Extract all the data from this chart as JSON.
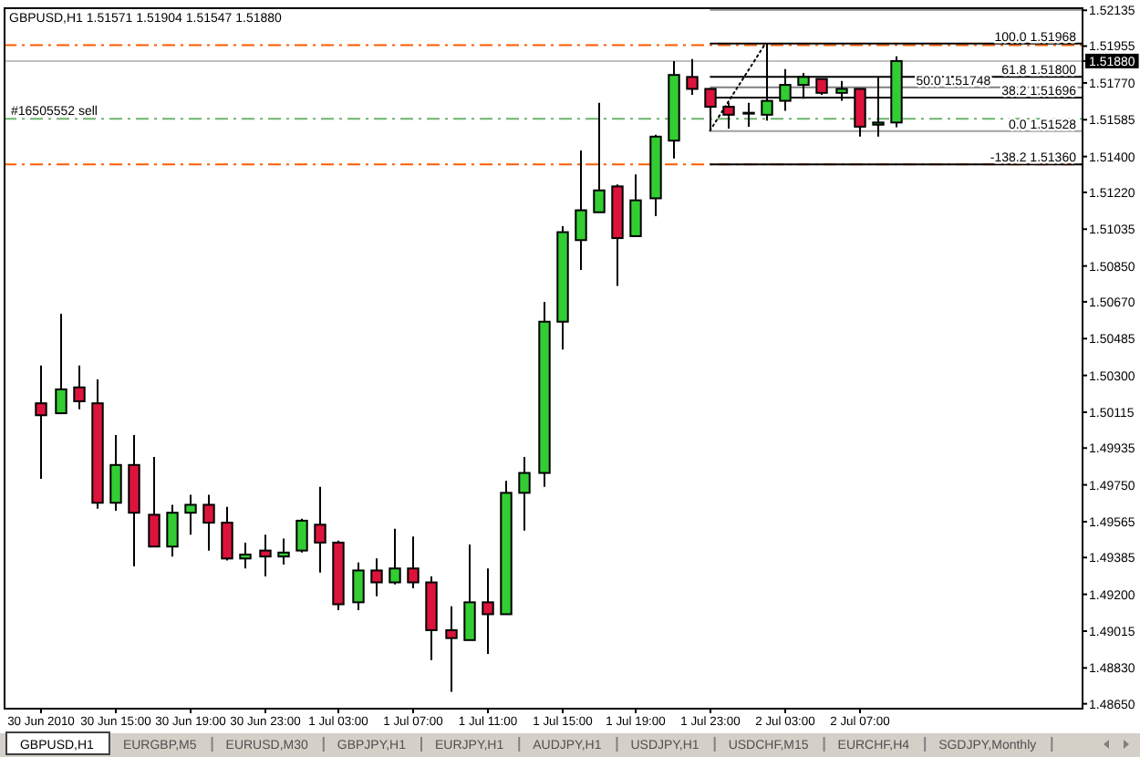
{
  "chart_data": {
    "type": "candlestick",
    "title": "GBPUSD,H1 1.51571 1.51904 1.51547 1.51880",
    "x": [
      "2010-06-30T11:00",
      "2010-06-30T12:00",
      "2010-06-30T13:00",
      "2010-06-30T14:00",
      "2010-06-30T15:00",
      "2010-06-30T16:00",
      "2010-06-30T17:00",
      "2010-06-30T18:00",
      "2010-06-30T19:00",
      "2010-06-30T20:00",
      "2010-06-30T21:00",
      "2010-06-30T22:00",
      "2010-06-30T23:00",
      "2010-07-01T00:00",
      "2010-07-01T01:00",
      "2010-07-01T02:00",
      "2010-07-01T03:00",
      "2010-07-01T04:00",
      "2010-07-01T05:00",
      "2010-07-01T06:00",
      "2010-07-01T07:00",
      "2010-07-01T08:00",
      "2010-07-01T09:00",
      "2010-07-01T10:00",
      "2010-07-01T11:00",
      "2010-07-01T12:00",
      "2010-07-01T13:00",
      "2010-07-01T14:00",
      "2010-07-01T15:00",
      "2010-07-01T16:00",
      "2010-07-01T17:00",
      "2010-07-01T18:00",
      "2010-07-01T19:00",
      "2010-07-01T20:00",
      "2010-07-01T21:00",
      "2010-07-01T22:00",
      "2010-07-01T23:00",
      "2010-07-02T00:00",
      "2010-07-02T01:00",
      "2010-07-02T02:00",
      "2010-07-02T03:00",
      "2010-07-02T04:00",
      "2010-07-02T05:00",
      "2010-07-02T06:00",
      "2010-07-02T07:00",
      "2010-07-02T08:00",
      "2010-07-02T09:00"
    ],
    "ohlc": [
      [
        1.5016,
        1.5035,
        1.4978,
        1.501
      ],
      [
        1.5011,
        1.5061,
        1.5011,
        1.5023
      ],
      [
        1.5024,
        1.5035,
        1.5013,
        1.5017
      ],
      [
        1.5016,
        1.5028,
        1.4963,
        1.4966
      ],
      [
        1.4966,
        1.5,
        1.4962,
        1.4985
      ],
      [
        1.4985,
        1.5,
        1.4934,
        1.4961
      ],
      [
        1.496,
        1.4989,
        1.4944,
        1.4944
      ],
      [
        1.4944,
        1.4965,
        1.4939,
        1.4961
      ],
      [
        1.4961,
        1.497,
        1.495,
        1.4965
      ],
      [
        1.4965,
        1.497,
        1.4942,
        1.4956
      ],
      [
        1.4956,
        1.4964,
        1.4937,
        1.4938
      ],
      [
        1.4938,
        1.4946,
        1.4933,
        1.494
      ],
      [
        1.4942,
        1.495,
        1.4929,
        1.4939
      ],
      [
        1.4939,
        1.4948,
        1.4935,
        1.4941
      ],
      [
        1.4942,
        1.4958,
        1.4941,
        1.4957
      ],
      [
        1.4955,
        1.4974,
        1.4931,
        1.4946
      ],
      [
        1.4946,
        1.4947,
        1.4912,
        1.4915
      ],
      [
        1.4916,
        1.4936,
        1.4912,
        1.4932
      ],
      [
        1.4932,
        1.4938,
        1.4919,
        1.4926
      ],
      [
        1.4926,
        1.4953,
        1.4925,
        1.4933
      ],
      [
        1.4933,
        1.4949,
        1.4923,
        1.4926
      ],
      [
        1.4926,
        1.4929,
        1.4887,
        1.4902
      ],
      [
        1.4902,
        1.4914,
        1.4871,
        1.4898
      ],
      [
        1.4897,
        1.4945,
        1.4897,
        1.4916
      ],
      [
        1.4916,
        1.4933,
        1.489,
        1.491
      ],
      [
        1.491,
        1.4977,
        1.491,
        1.4971
      ],
      [
        1.4971,
        1.4989,
        1.4952,
        1.4981
      ],
      [
        1.4981,
        1.5067,
        1.4974,
        1.5057
      ],
      [
        1.5057,
        1.5105,
        1.5043,
        1.5102
      ],
      [
        1.5098,
        1.5143,
        1.5083,
        1.5113
      ],
      [
        1.5112,
        1.5167,
        1.5112,
        1.5123
      ],
      [
        1.5125,
        1.5126,
        1.5075,
        1.5099
      ],
      [
        1.51,
        1.5131,
        1.51,
        1.5118
      ],
      [
        1.5119,
        1.5151,
        1.511,
        1.515
      ],
      [
        1.5148,
        1.5188,
        1.5139,
        1.5181
      ],
      [
        1.518,
        1.5189,
        1.5171,
        1.5174
      ],
      [
        1.5174,
        1.5174,
        1.51528,
        1.5165
      ],
      [
        1.5165,
        1.5167,
        1.5154,
        1.5161
      ],
      [
        1.5162,
        1.5167,
        1.5155,
        1.5162
      ],
      [
        1.5161,
        1.51968,
        1.5158,
        1.5168
      ],
      [
        1.5168,
        1.5184,
        1.5163,
        1.5176
      ],
      [
        1.5176,
        1.5182,
        1.5169,
        1.518
      ],
      [
        1.5179,
        1.5179,
        1.5171,
        1.5172
      ],
      [
        1.5172,
        1.5178,
        1.5168,
        1.5174
      ],
      [
        1.5174,
        1.5174,
        1.515,
        1.5155
      ],
      [
        1.5156,
        1.518,
        1.515,
        1.51571
      ],
      [
        1.51571,
        1.51904,
        1.51547,
        1.5188
      ]
    ],
    "colors": [
      "#dc143c",
      "#32cd32",
      "#dc143c",
      "#dc143c",
      "#32cd32",
      "#dc143c",
      "#dc143c",
      "#32cd32",
      "#32cd32",
      "#dc143c",
      "#dc143c",
      "#32cd32",
      "#dc143c",
      "#32cd32",
      "#32cd32",
      "#dc143c",
      "#dc143c",
      "#32cd32",
      "#dc143c",
      "#32cd32",
      "#dc143c",
      "#dc143c",
      "#dc143c",
      "#32cd32",
      "#dc143c",
      "#32cd32",
      "#32cd32",
      "#32cd32",
      "#32cd32",
      "#32cd32",
      "#32cd32",
      "#dc143c",
      "#32cd32",
      "#32cd32",
      "#32cd32",
      "#dc143c",
      "#dc143c",
      "#dc143c",
      "#32cd32",
      "#32cd32",
      "#32cd32",
      "#32cd32",
      "#dc143c",
      "#32cd32",
      "#dc143c",
      "#32cd32",
      "#32cd32"
    ],
    "series": [
      {
        "type": "line",
        "x": [
          "2010-07-01T23:00",
          "2010-07-02T02:00"
        ],
        "values": [
          1.5153,
          1.5197
        ],
        "color": "#000000",
        "line_style": "dotted"
      }
    ],
    "xlim": [
      "2010-06-30T09:00",
      "2010-07-02T19:00"
    ],
    "xticks": [
      {
        "value": "2010-06-30T11:00",
        "label": "30 Jun 2010"
      },
      {
        "value": "2010-06-30T15:00",
        "label": "30 Jun 15:00"
      },
      {
        "value": "2010-06-30T19:00",
        "label": "30 Jun 19:00"
      },
      {
        "value": "2010-06-30T23:00",
        "label": "30 Jun 23:00"
      },
      {
        "value": "2010-07-01T03:00",
        "label": "1 Jul 03:00"
      },
      {
        "value": "2010-07-01T07:00",
        "label": "1 Jul 07:00"
      },
      {
        "value": "2010-07-01T11:00",
        "label": "1 Jul 11:00"
      },
      {
        "value": "2010-07-01T15:00",
        "label": "1 Jul 15:00"
      },
      {
        "value": "2010-07-01T19:00",
        "label": "1 Jul 19:00"
      },
      {
        "value": "2010-07-01T23:00",
        "label": "1 Jul 23:00"
      },
      {
        "value": "2010-07-02T03:00",
        "label": "2 Jul 03:00"
      },
      {
        "value": "2010-07-02T07:00",
        "label": "2 Jul 07:00"
      }
    ],
    "ylim": [
      1.4863,
      1.5215
    ],
    "yticks": [
      1.52135,
      1.51955,
      {
        "value": 1.5188,
        "label": "1.51880"
      },
      {
        "value": 1.5177,
        "label": "1.51770"
      },
      1.51585,
      {
        "value": 1.514,
        "label": "1.51400"
      },
      {
        "value": 1.5122,
        "label": "1.51220"
      },
      1.51035,
      {
        "value": 1.5085,
        "label": "1.50850"
      },
      {
        "value": 1.5067,
        "label": "1.50670"
      },
      1.50485,
      {
        "value": 1.503,
        "label": "1.50300"
      },
      1.50115,
      1.49935,
      {
        "value": 1.4975,
        "label": "1.49750"
      },
      1.49565,
      1.49385,
      {
        "value": 1.492,
        "label": "1.49200"
      },
      1.49015,
      {
        "value": 1.4883,
        "label": "1.48830"
      },
      {
        "value": 1.4865,
        "label": "1.48650"
      }
    ],
    "ref_lines": [
      {
        "axis": "y",
        "value": 1.5196,
        "color": "#ff5a00",
        "line_style": "dashed"
      },
      {
        "axis": "y",
        "value": 1.5136,
        "color": "#ff5a00",
        "line_style": "dashed"
      },
      {
        "axis": "y",
        "value": 1.5159,
        "label": "#16505552 sell",
        "color": "#6db36d",
        "line_style": "dashed"
      },
      {
        "axis": "y",
        "value": 1.5188,
        "color": "#c0c0c0"
      },
      {
        "axis": "y",
        "value": 1.52136,
        "color": "#a0a0a0"
      },
      {
        "axis": "y",
        "value": 1.51968,
        "label": "100.0 1.51968",
        "color": "#000000"
      },
      {
        "axis": "y",
        "value": 1.518,
        "label": "61.8 1.51800",
        "color": "#000000"
      },
      {
        "axis": "y",
        "value": 1.51748,
        "label": "50.0 1.51748",
        "color": "#808080"
      },
      {
        "axis": "y",
        "value": 1.51696,
        "label": "38.2 1.51696",
        "color": "#000000"
      },
      {
        "axis": "y",
        "value": 1.51528,
        "label": "0.0 1.51528",
        "color": "#a0a0a0"
      },
      {
        "axis": "y",
        "value": 1.5136,
        "label": "-138.2 1.51360",
        "color": "#000000"
      }
    ],
    "annotations": [
      "GBPUSD,H1",
      "EURGBP,M5",
      "EURUSD,M30",
      "GBPJPY,H1",
      "EURJPY,H1",
      "AUDJPY,H1",
      "USDJPY,H1",
      "USDCHF,M15",
      "EURCHF,H4",
      "SGDJPY,Monthly"
    ]
  }
}
